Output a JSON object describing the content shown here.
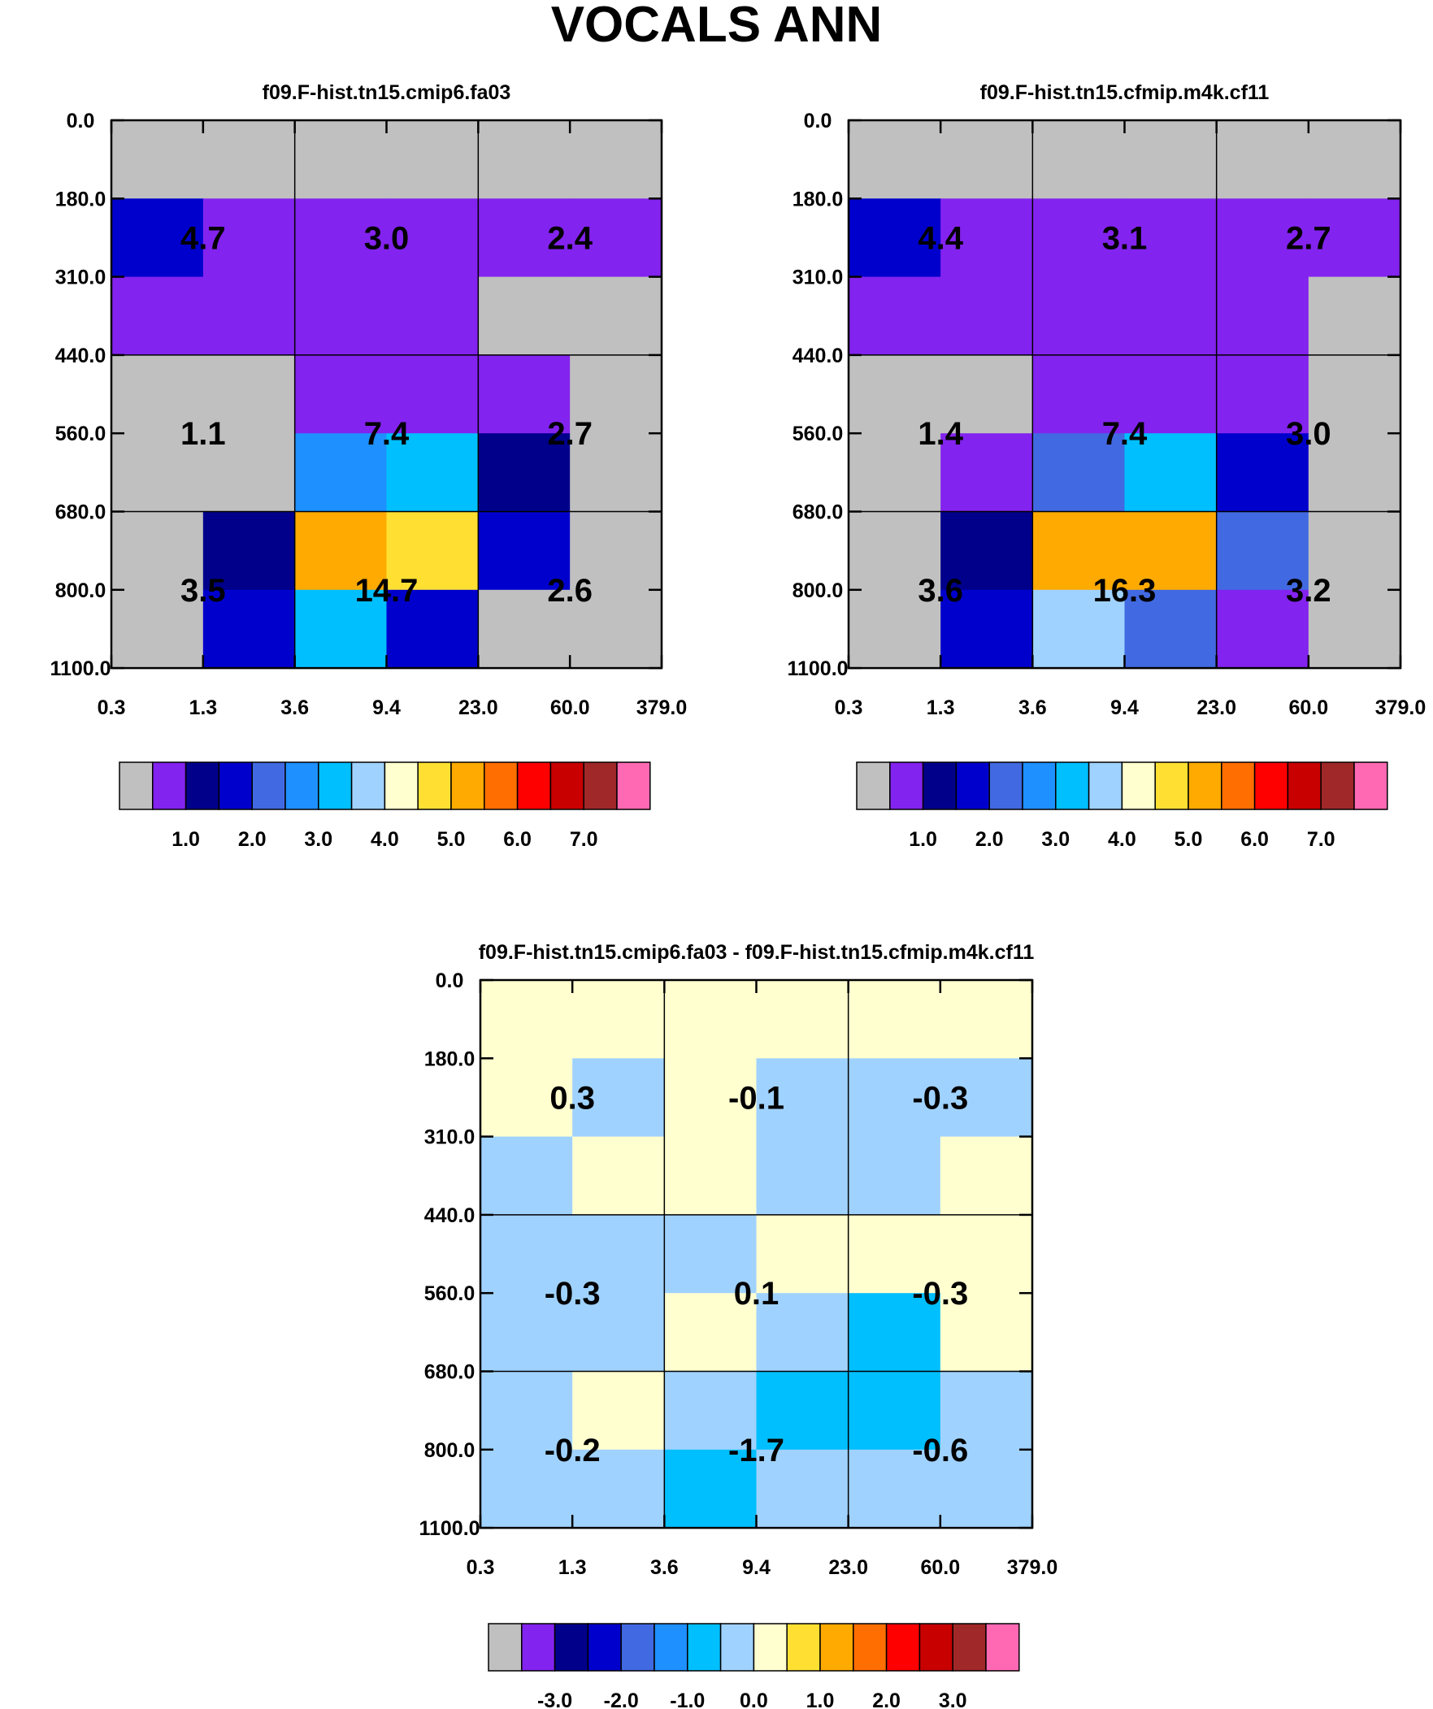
{
  "figure_title": "VOCALS ANN",
  "palette": [
    "#c0c0c0",
    "#8323ef",
    "#00008b",
    "#0000cd",
    "#4169e1",
    "#1e90ff",
    "#00bfff",
    "#a0d2ff",
    "#ffffd0",
    "#ffe032",
    "#ffaa00",
    "#ff6e00",
    "#ff0000",
    "#c80000",
    "#a02828",
    "#ff69b4"
  ],
  "chart_data": [
    {
      "type": "heatmap",
      "name": "model-a",
      "title": "f09.F-hist.tn15.cmip6.fa03",
      "x_tick_labels": [
        "0.3",
        "1.3",
        "3.6",
        "9.4",
        "23.0",
        "60.0",
        "379.0"
      ],
      "y_tick_labels": [
        "0.0",
        "180.0",
        "310.0",
        "440.0",
        "560.0",
        "680.0",
        "800.0",
        "1100.0"
      ],
      "cell_colors": [
        [
          0,
          0,
          0,
          0,
          0,
          0
        ],
        [
          3,
          1,
          1,
          1,
          1,
          1
        ],
        [
          1,
          1,
          1,
          1,
          0,
          0
        ],
        [
          0,
          0,
          1,
          1,
          1,
          0
        ],
        [
          0,
          0,
          5,
          6,
          2,
          0
        ],
        [
          0,
          2,
          10,
          9,
          3,
          0
        ],
        [
          0,
          3,
          6,
          3,
          0,
          0
        ]
      ],
      "box_values": [
        [
          "4.7",
          "3.0",
          "2.4"
        ],
        [
          "1.1",
          "7.4",
          "2.7"
        ],
        [
          "3.5",
          "14.7",
          "2.6"
        ]
      ],
      "colorbar_labels": [
        "1.0",
        "2.0",
        "3.0",
        "4.0",
        "5.0",
        "6.0",
        "7.0"
      ]
    },
    {
      "type": "heatmap",
      "name": "model-b",
      "title": "f09.F-hist.tn15.cfmip.m4k.cf11",
      "x_tick_labels": [
        "0.3",
        "1.3",
        "3.6",
        "9.4",
        "23.0",
        "60.0",
        "379.0"
      ],
      "y_tick_labels": [
        "0.0",
        "180.0",
        "310.0",
        "440.0",
        "560.0",
        "680.0",
        "800.0",
        "1100.0"
      ],
      "cell_colors": [
        [
          0,
          0,
          0,
          0,
          0,
          0
        ],
        [
          3,
          1,
          1,
          1,
          1,
          1
        ],
        [
          1,
          1,
          1,
          1,
          1,
          0
        ],
        [
          0,
          0,
          1,
          1,
          1,
          0
        ],
        [
          0,
          1,
          4,
          6,
          3,
          0
        ],
        [
          0,
          2,
          10,
          10,
          4,
          0
        ],
        [
          0,
          3,
          7,
          4,
          1,
          0
        ]
      ],
      "box_values": [
        [
          "4.4",
          "3.1",
          "2.7"
        ],
        [
          "1.4",
          "7.4",
          "3.0"
        ],
        [
          "3.6",
          "16.3",
          "3.2"
        ]
      ],
      "colorbar_labels": [
        "1.0",
        "2.0",
        "3.0",
        "4.0",
        "5.0",
        "6.0",
        "7.0"
      ]
    },
    {
      "type": "heatmap",
      "name": "difference",
      "title": "f09.F-hist.tn15.cmip6.fa03 - f09.F-hist.tn15.cfmip.m4k.cf11",
      "x_tick_labels": [
        "0.3",
        "1.3",
        "3.6",
        "9.4",
        "23.0",
        "60.0",
        "379.0"
      ],
      "y_tick_labels": [
        "0.0",
        "180.0",
        "310.0",
        "440.0",
        "560.0",
        "680.0",
        "800.0",
        "1100.0"
      ],
      "cell_colors": [
        [
          8,
          8,
          8,
          8,
          8,
          8
        ],
        [
          8,
          7,
          8,
          7,
          7,
          7
        ],
        [
          7,
          8,
          8,
          7,
          7,
          8
        ],
        [
          7,
          7,
          7,
          8,
          8,
          8
        ],
        [
          7,
          7,
          8,
          7,
          6,
          8
        ],
        [
          7,
          8,
          7,
          6,
          6,
          7
        ],
        [
          7,
          7,
          6,
          7,
          7,
          7
        ]
      ],
      "box_values": [
        [
          "0.3",
          "-0.1",
          "-0.3"
        ],
        [
          "-0.3",
          "0.1",
          "-0.3"
        ],
        [
          "-0.2",
          "-1.7",
          "-0.6"
        ]
      ],
      "colorbar_labels": [
        "-3.0",
        "-2.0",
        "-1.0",
        "0.0",
        "1.0",
        "2.0",
        "3.0"
      ]
    }
  ]
}
